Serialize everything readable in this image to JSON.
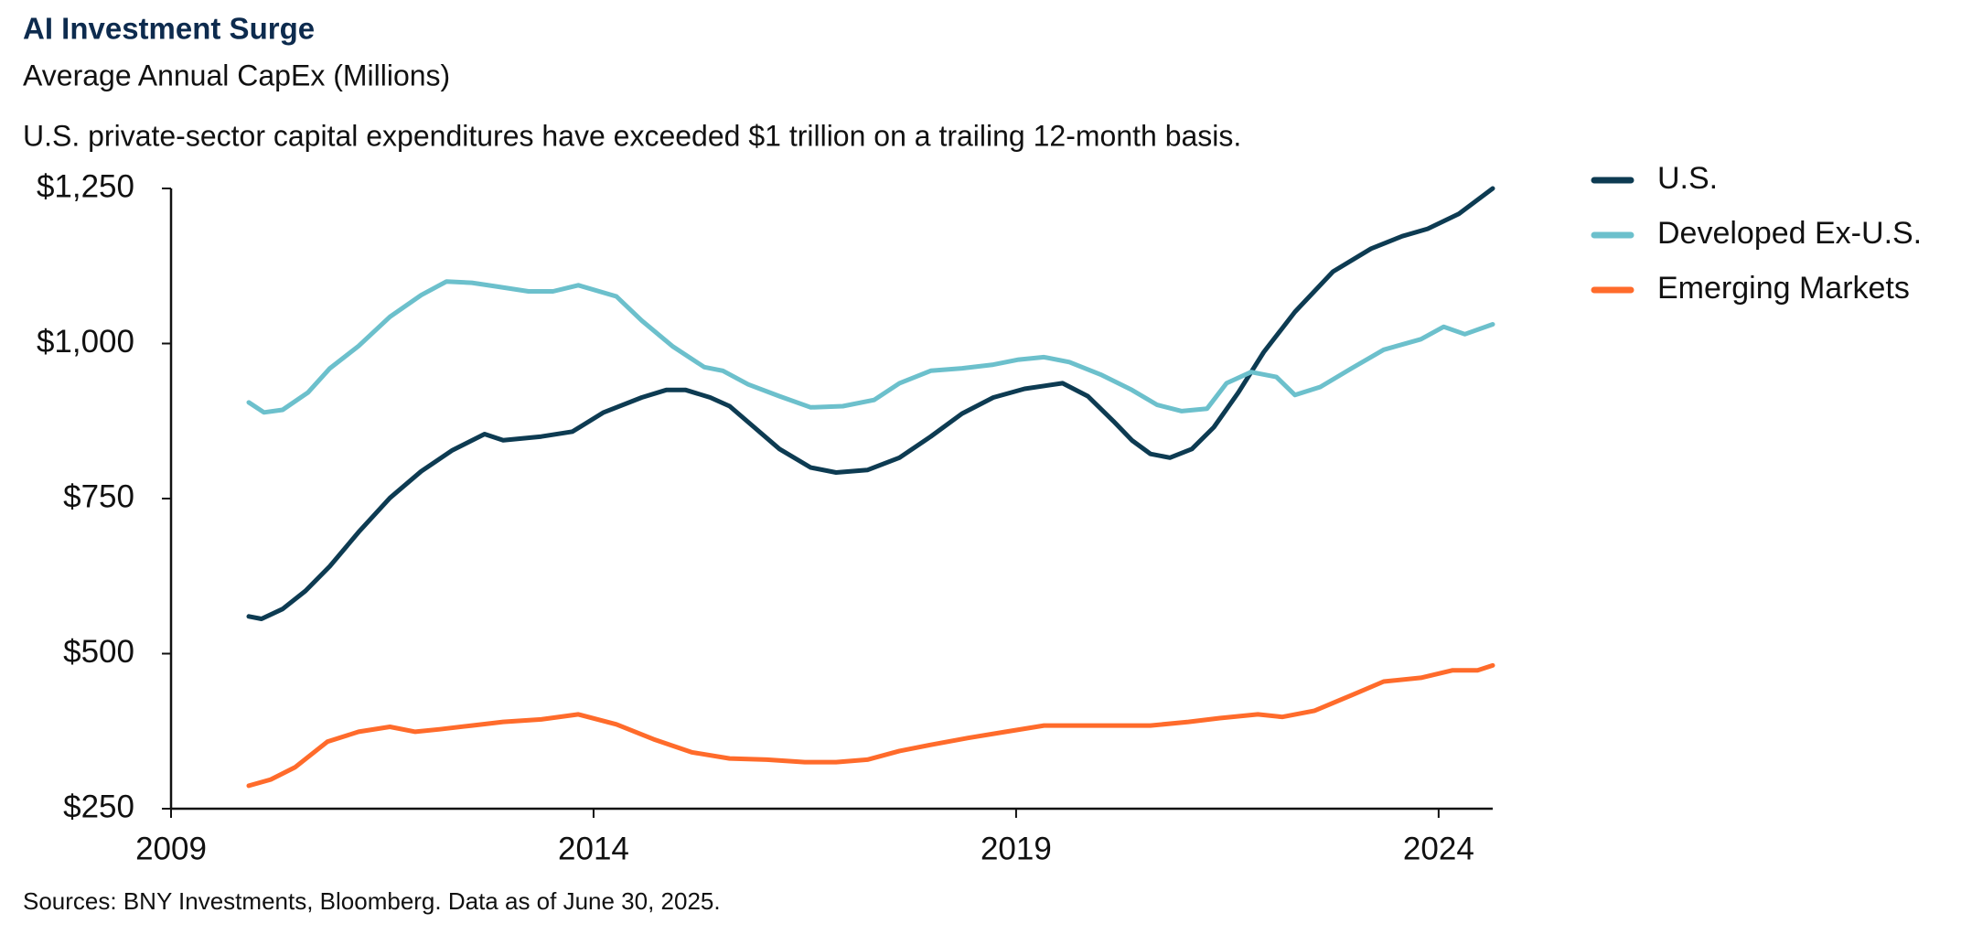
{
  "chart_data": {
    "type": "line",
    "title": "AI Investment Surge",
    "subtitle": "Average Annual CapEx (Millions)",
    "annotation": "U.S. private-sector capital expenditures have exceeded $1 trillion on a trailing 12-month basis.",
    "source": "Sources: BNY Investments, Bloomberg. Data as of June 30, 2025.",
    "xlim": [
      2009,
      2024.64
    ],
    "xticks": [
      2009,
      2014,
      2019,
      2024
    ],
    "ylim": [
      250,
      1250
    ],
    "yticks": [
      {
        "value": 250,
        "label": "$250"
      },
      {
        "value": 500,
        "label": "$500"
      },
      {
        "value": 750,
        "label": "$750"
      },
      {
        "value": 1000,
        "label": "$1,000"
      },
      {
        "value": 1250,
        "label": "$1,250"
      }
    ],
    "legend": "right",
    "series": [
      {
        "name": "U.S.",
        "color": "#0d3b52",
        "x": [
          2009.92,
          2010.07,
          2010.32,
          2010.59,
          2010.88,
          2011.22,
          2011.59,
          2011.96,
          2012.33,
          2012.71,
          2012.93,
          2013.38,
          2013.75,
          2014.12,
          2014.57,
          2014.86,
          2015.09,
          2015.38,
          2015.61,
          2015.9,
          2016.2,
          2016.57,
          2016.87,
          2017.24,
          2017.62,
          2017.99,
          2018.36,
          2018.73,
          2019.1,
          2019.55,
          2019.85,
          2020.15,
          2020.37,
          2020.59,
          2020.82,
          2021.08,
          2021.34,
          2021.63,
          2021.93,
          2022.3,
          2022.75,
          2023.2,
          2023.57,
          2023.87,
          2024.24,
          2024.64
        ],
        "values": [
          560,
          556,
          572,
          601,
          641,
          696,
          751,
          794,
          828,
          854,
          844,
          850,
          858,
          889,
          913,
          925,
          925,
          913,
          899,
          865,
          830,
          800,
          792,
          796,
          816,
          850,
          887,
          913,
          927,
          936,
          915,
          875,
          844,
          822,
          816,
          830,
          865,
          921,
          986,
          1051,
          1116,
          1153,
          1173,
          1185,
          1209,
          1250
        ]
      },
      {
        "name": "Developed Ex-U.S.",
        "color": "#6cc0cc",
        "x": [
          2009.92,
          2010.1,
          2010.32,
          2010.62,
          2010.88,
          2011.22,
          2011.59,
          2011.96,
          2012.26,
          2012.56,
          2012.85,
          2013.23,
          2013.52,
          2013.82,
          2014.27,
          2014.57,
          2014.94,
          2015.31,
          2015.53,
          2015.83,
          2016.2,
          2016.57,
          2016.95,
          2017.32,
          2017.62,
          2017.99,
          2018.36,
          2018.73,
          2019.03,
          2019.33,
          2019.63,
          2020.0,
          2020.37,
          2020.67,
          2020.96,
          2021.26,
          2021.49,
          2021.78,
          2022.08,
          2022.3,
          2022.6,
          2022.97,
          2023.35,
          2023.79,
          2024.06,
          2024.31,
          2024.64
        ],
        "values": [
          905,
          889,
          893,
          921,
          960,
          996,
          1043,
          1078,
          1100,
          1098,
          1092,
          1084,
          1084,
          1094,
          1076,
          1037,
          995,
          962,
          956,
          934,
          915,
          897,
          899,
          909,
          936,
          956,
          960,
          966,
          974,
          978,
          970,
          950,
          925,
          901,
          891,
          895,
          936,
          954,
          946,
          917,
          930,
          960,
          990,
          1007,
          1027,
          1015,
          1031
        ]
      },
      {
        "name": "Emerging Markets",
        "color": "#ff6b2b",
        "x": [
          2009.92,
          2010.18,
          2010.47,
          2010.85,
          2011.22,
          2011.59,
          2011.89,
          2012.18,
          2012.56,
          2012.93,
          2013.38,
          2013.82,
          2014.27,
          2014.71,
          2015.16,
          2015.61,
          2016.05,
          2016.5,
          2016.87,
          2017.24,
          2017.62,
          2017.99,
          2018.43,
          2018.88,
          2019.33,
          2019.77,
          2020.22,
          2020.59,
          2021.04,
          2021.41,
          2021.86,
          2022.15,
          2022.53,
          2022.97,
          2023.35,
          2023.79,
          2024.16,
          2024.46,
          2024.64
        ],
        "values": [
          287,
          297,
          317,
          358,
          374,
          382,
          374,
          378,
          384,
          390,
          394,
          402,
          386,
          362,
          341,
          331,
          329,
          325,
          325,
          329,
          343,
          353,
          364,
          374,
          384,
          384,
          384,
          384,
          390,
          396,
          402,
          398,
          408,
          433,
          455,
          461,
          473,
          473,
          481
        ]
      }
    ]
  }
}
